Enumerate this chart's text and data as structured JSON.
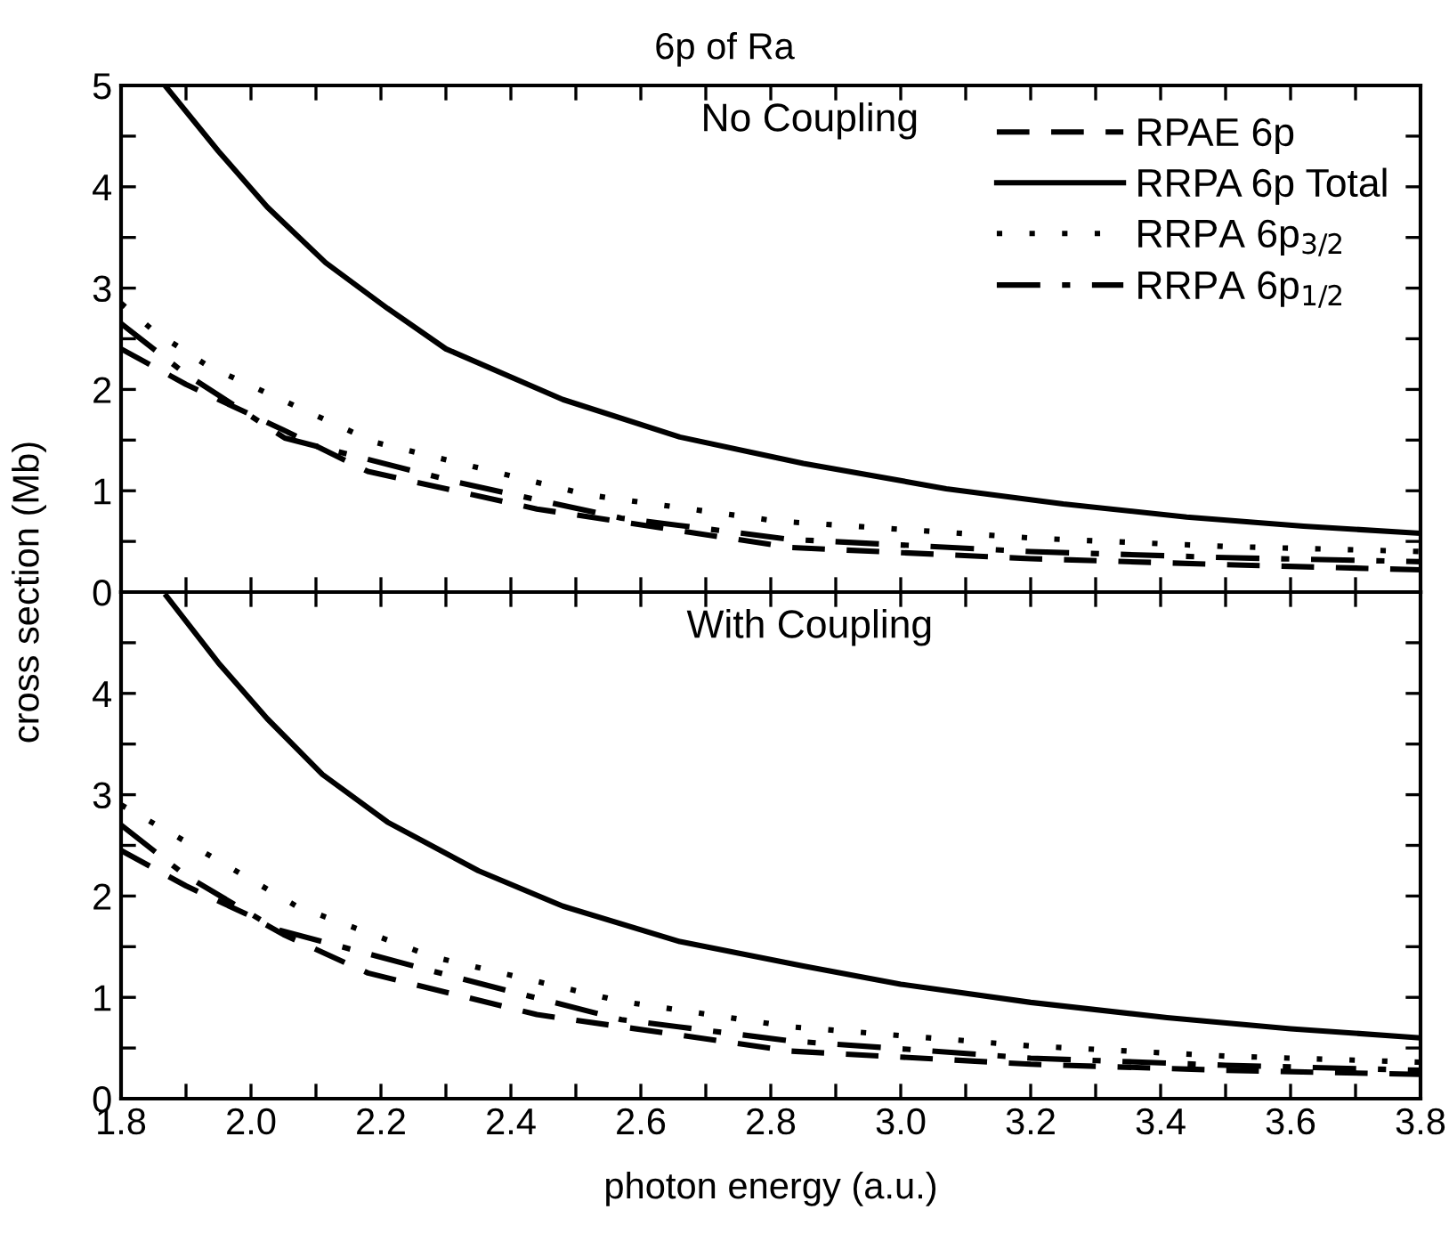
{
  "chart_data": [
    {
      "type": "line",
      "title": "6p of Ra",
      "ylabel": "cross section (Mb)",
      "annotations": [
        "No Coupling"
      ],
      "legend": "top right",
      "tick_labels": "y",
      "grid": false,
      "xlim": [
        1.8,
        3.8
      ],
      "ylim": [
        0,
        5
      ],
      "xticks": [
        1.8,
        1.9,
        2.0,
        2.1,
        2.2,
        2.3,
        2.4,
        2.5,
        2.6,
        2.7,
        2.8,
        2.9,
        3.0,
        3.1,
        3.2,
        3.3,
        3.4,
        3.5,
        3.6,
        3.7,
        3.8
      ],
      "yticks": [
        0,
        {
          "value": 0.5,
          "label": null
        },
        1,
        {
          "value": 1.5,
          "label": null
        },
        2,
        {
          "value": 2.5,
          "label": null
        },
        3,
        {
          "value": 3.5,
          "label": null
        },
        4,
        {
          "value": 4.5,
          "label": null
        },
        5
      ],
      "series": [
        {
          "name": "RPAE 6p",
          "color": "#000000",
          "line_style": "dashed",
          "x": [
            1.8,
            1.9,
            2.0,
            2.05,
            2.18,
            2.44,
            2.83,
            3.2,
            3.5,
            3.8
          ],
          "values": [
            2.4,
            2.05,
            1.75,
            1.6,
            1.19,
            0.82,
            0.44,
            0.33,
            0.27,
            0.22
          ]
        },
        {
          "name": "RRPA 6p Total",
          "color": "#000000",
          "line_style": "solid",
          "x": [
            1.87,
            1.95,
            2.025,
            2.115,
            2.21,
            2.3,
            2.48,
            2.66,
            2.85,
            3.07,
            3.25,
            3.44,
            3.62,
            3.8
          ],
          "values": [
            4.98,
            4.35,
            3.8,
            3.25,
            2.8,
            2.4,
            1.9,
            1.53,
            1.27,
            1.02,
            0.87,
            0.74,
            0.65,
            0.58
          ]
        },
        {
          "name": "RRPA 6p$_{3/2}$",
          "color": "#000000",
          "line_style": "dotted",
          "x": [
            1.8,
            1.85,
            1.934,
            2.19,
            2.518,
            2.81,
            3.21,
            3.5,
            3.8
          ],
          "values": [
            2.85,
            2.58,
            2.23,
            1.48,
            0.96,
            0.7,
            0.53,
            0.45,
            0.4
          ]
        },
        {
          "name": "RRPA 6p$_{1/2}$",
          "color": "#000000",
          "line_style": "dashdot",
          "x": [
            1.8,
            1.9,
            2.052,
            2.32,
            2.57,
            2.83,
            3.2,
            3.5,
            3.8
          ],
          "values": [
            2.65,
            2.15,
            1.52,
            1.08,
            0.73,
            0.52,
            0.4,
            0.34,
            0.3
          ]
        }
      ]
    },
    {
      "type": "line",
      "xlabel": "photon energy (a.u.)",
      "annotations": [
        "With Coupling"
      ],
      "grid": false,
      "xlim": [
        1.8,
        3.8
      ],
      "ylim": [
        0,
        5
      ],
      "xticks": [
        1.8,
        {
          "value": 1.9,
          "label": null
        },
        {
          "value": 2,
          "label": "2.0"
        },
        {
          "value": 2.1,
          "label": null
        },
        2.2,
        {
          "value": 2.3,
          "label": null
        },
        2.4,
        {
          "value": 2.5,
          "label": null
        },
        2.6,
        {
          "value": 2.7,
          "label": null
        },
        2.8,
        {
          "value": 2.9,
          "label": null
        },
        {
          "value": 3,
          "label": "3.0"
        },
        {
          "value": 3.1,
          "label": null
        },
        3.2,
        {
          "value": 3.3,
          "label": null
        },
        3.4,
        {
          "value": 3.5,
          "label": null
        },
        3.6,
        {
          "value": 3.7,
          "label": null
        },
        3.8
      ],
      "yticks": [
        0,
        {
          "value": 0.5,
          "label": null
        },
        1,
        {
          "value": 1.5,
          "label": null
        },
        2,
        {
          "value": 2.5,
          "label": null
        },
        3,
        {
          "value": 3.5,
          "label": null
        },
        4,
        {
          "value": 4.5,
          "label": null
        },
        {
          "value": 5,
          "label": null
        }
      ],
      "series": [
        {
          "color": "#000000",
          "line_style": "dashed",
          "x": [
            1.8,
            1.9,
            2.0,
            2.05,
            2.18,
            2.44,
            2.83,
            3.2,
            3.5,
            3.8
          ],
          "values": [
            2.45,
            2.1,
            1.8,
            1.62,
            1.24,
            0.83,
            0.47,
            0.34,
            0.28,
            0.24
          ]
        },
        {
          "color": "#000000",
          "line_style": "solid",
          "x": [
            1.87,
            1.95,
            2.025,
            2.11,
            2.21,
            2.35,
            2.48,
            2.66,
            2.85,
            3.0,
            3.2,
            3.41,
            3.6,
            3.8
          ],
          "values": [
            4.96,
            4.3,
            3.75,
            3.2,
            2.73,
            2.25,
            1.9,
            1.55,
            1.31,
            1.13,
            0.95,
            0.8,
            0.69,
            0.6
          ]
        },
        {
          "color": "#000000",
          "line_style": "dotted",
          "x": [
            1.8,
            1.896,
            2.07,
            2.28,
            2.57,
            2.83,
            3.2,
            3.5,
            3.8
          ],
          "values": [
            2.9,
            2.55,
            1.9,
            1.4,
            0.96,
            0.71,
            0.52,
            0.42,
            0.36
          ]
        },
        {
          "color": "#000000",
          "line_style": "dashdot",
          "x": [
            1.8,
            1.9,
            2.04,
            2.32,
            2.57,
            2.83,
            3.2,
            3.5,
            3.8
          ],
          "values": [
            2.7,
            2.2,
            1.67,
            1.19,
            0.78,
            0.57,
            0.4,
            0.33,
            0.28
          ]
        }
      ]
    }
  ]
}
